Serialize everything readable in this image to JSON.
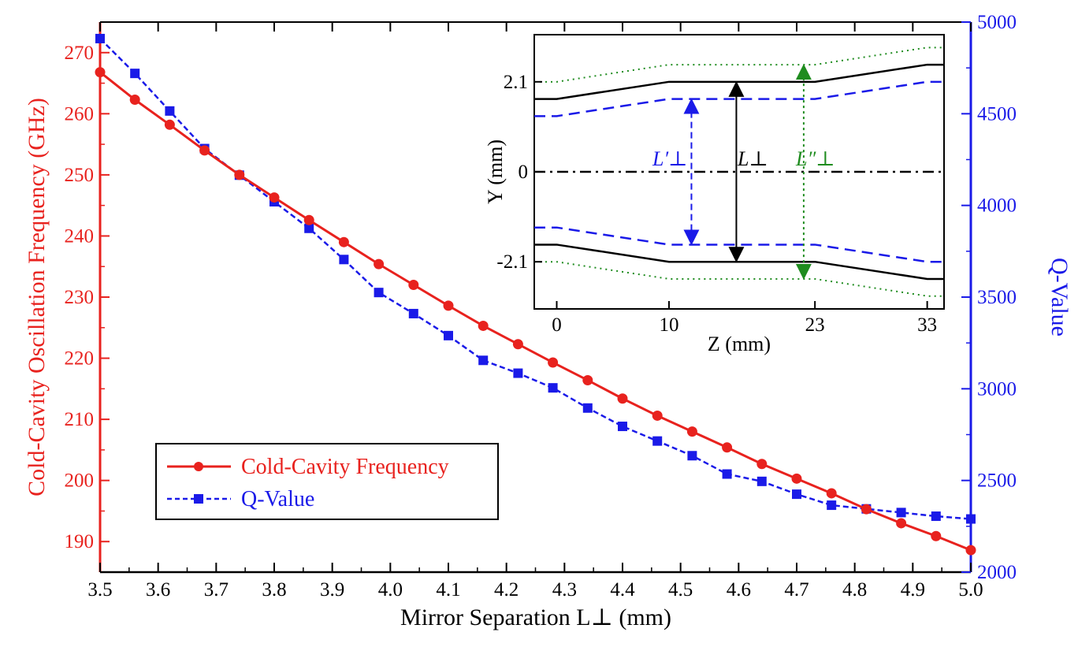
{
  "chart_data": [
    {
      "type": "line",
      "xlabel": "Mirror Separation L⊥ (mm)",
      "ylabel": "Cold-Cavity Oscillation Frequency (GHz)",
      "y2label": "Q-Value",
      "xlim": [
        3.5,
        5.0
      ],
      "ylim": [
        185,
        275
      ],
      "y2lim": [
        2000,
        5000
      ],
      "x_ticks": [
        "3.5",
        "3.6",
        "3.7",
        "3.8",
        "3.9",
        "4.0",
        "4.1",
        "4.2",
        "4.3",
        "4.4",
        "4.5",
        "4.6",
        "4.7",
        "4.8",
        "4.9",
        "5.0"
      ],
      "y_ticks": [
        "190",
        "200",
        "210",
        "220",
        "230",
        "240",
        "250",
        "260",
        "270"
      ],
      "y2_ticks": [
        "2000",
        "2500",
        "3000",
        "3500",
        "4000",
        "4500",
        "5000"
      ],
      "grid": false,
      "legend_position": "bottom-left",
      "x": [
        3.5,
        3.56,
        3.62,
        3.68,
        3.74,
        3.8,
        3.86,
        3.92,
        3.98,
        4.04,
        4.1,
        4.16,
        4.22,
        4.28,
        4.34,
        4.4,
        4.46,
        4.52,
        4.58,
        4.64,
        4.7,
        4.76,
        4.82,
        4.88,
        4.94,
        5.0
      ],
      "series": [
        {
          "name": "Cold-Cavity Frequency",
          "axis": "left",
          "color": "#e8221e",
          "marker": "circle",
          "line": "solid",
          "values": [
            266.8,
            262.3,
            258.2,
            254.0,
            250.0,
            246.3,
            242.6,
            239.0,
            235.4,
            232.0,
            228.6,
            225.3,
            222.3,
            219.3,
            216.4,
            213.4,
            210.6,
            208.0,
            205.4,
            202.7,
            200.3,
            197.9,
            195.3,
            193.0,
            190.9,
            188.6
          ]
        },
        {
          "name": "Q-Value",
          "axis": "right",
          "color": "#1a1ae8",
          "marker": "square",
          "line": "dashed",
          "values": [
            4910,
            4720,
            4515,
            4310,
            4165,
            4020,
            3875,
            3705,
            3525,
            3410,
            3290,
            3155,
            3085,
            3005,
            2895,
            2795,
            2715,
            2635,
            2535,
            2495,
            2425,
            2365,
            2345,
            2325,
            2305,
            2290
          ]
        }
      ]
    },
    {
      "type": "line",
      "xlabel": "Z (mm)",
      "ylabel": "Y (mm)",
      "xlim": [
        -2,
        34.5
      ],
      "ylim": [
        -3.2,
        3.2
      ],
      "x_ticks": [
        "0",
        "10",
        "23",
        "33"
      ],
      "y_ticks": [
        "2.1",
        "0",
        "-2.1"
      ],
      "annotations": [
        "L′⊥",
        "L⊥",
        "L″⊥"
      ],
      "series": [
        {
          "color": "#000000",
          "line": "solid",
          "x": [
            -2,
            0,
            10,
            23,
            33,
            34.5
          ],
          "upper": [
            1.7,
            1.7,
            2.1,
            2.1,
            2.5,
            2.5
          ],
          "lower": [
            -1.7,
            -1.7,
            -2.1,
            -2.1,
            -2.5,
            -2.5
          ]
        },
        {
          "color": "#1a1ae8",
          "line": "dashed",
          "x": [
            -2,
            0,
            10,
            23,
            33,
            34.5
          ],
          "upper": [
            1.3,
            1.3,
            1.7,
            1.7,
            2.1,
            2.1
          ],
          "lower": [
            -1.3,
            -1.3,
            -1.7,
            -1.7,
            -2.1,
            -2.1
          ]
        },
        {
          "color": "#1f8c1f",
          "line": "dotted",
          "x": [
            -2,
            0,
            10,
            23,
            33,
            34.5
          ],
          "upper": [
            2.1,
            2.1,
            2.5,
            2.5,
            2.9,
            2.9
          ],
          "lower": [
            -2.1,
            -2.1,
            -2.5,
            -2.5,
            -2.9,
            -2.9
          ]
        },
        {
          "color": "#000000",
          "line": "dash-dot",
          "x": [
            -2,
            34.5
          ],
          "upper": [
            0,
            0
          ]
        }
      ],
      "arrows": [
        {
          "name": "L⊥",
          "color": "#000000",
          "z": 16,
          "y": [
            2.1,
            -2.1
          ]
        },
        {
          "name": "L′⊥",
          "color": "#1a1ae8",
          "z": 12,
          "y": [
            1.7,
            -1.7
          ]
        },
        {
          "name": "L″⊥",
          "color": "#1f8c1f",
          "z": 22,
          "y": [
            2.5,
            -2.5
          ]
        }
      ]
    }
  ]
}
